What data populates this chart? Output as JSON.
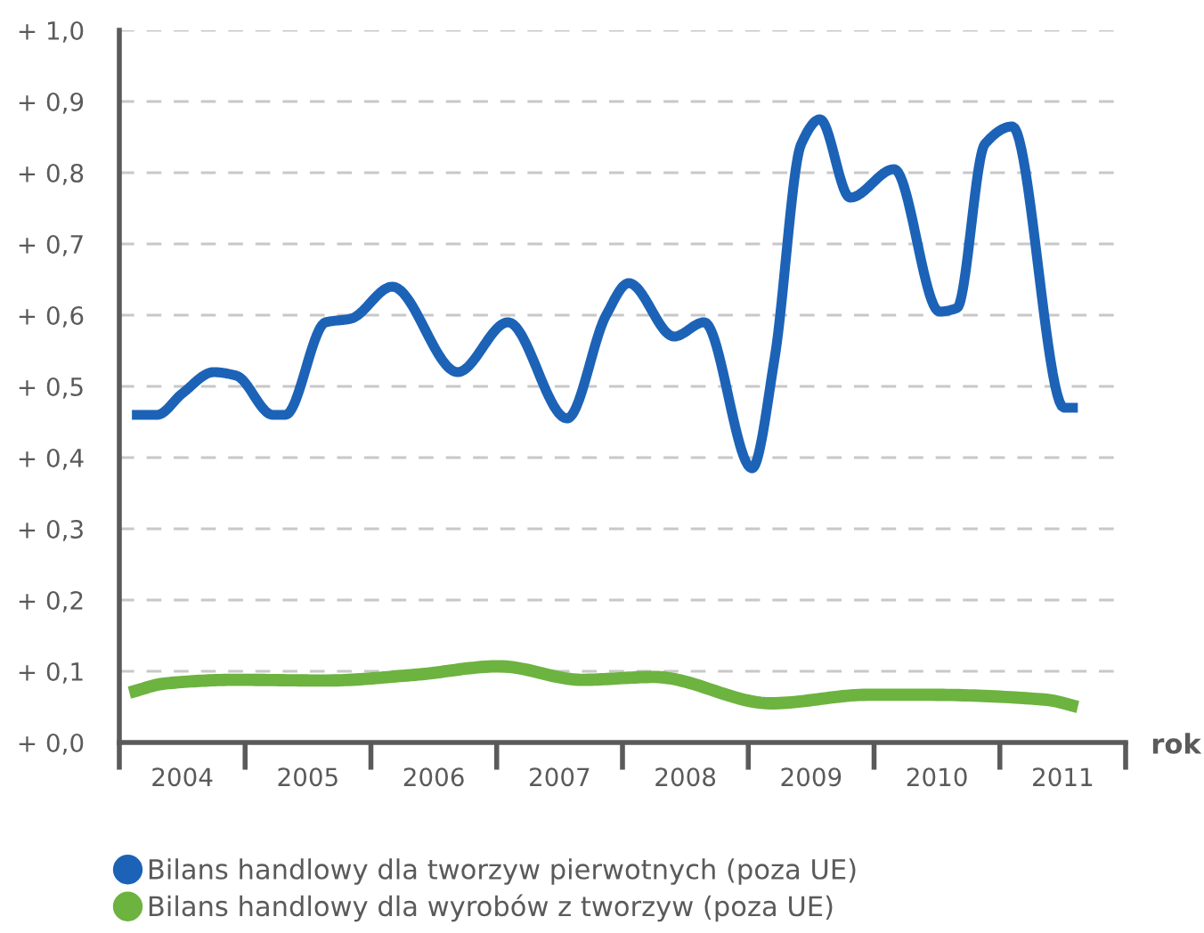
{
  "chart_data": {
    "type": "line",
    "xlabel": "rok",
    "xlim": [
      2003.5,
      2011.5
    ],
    "xticks": [
      {
        "value": 2003.5,
        "label": null
      },
      2004,
      {
        "value": 2004.5,
        "label": null
      },
      2005,
      {
        "value": 2005.5,
        "label": null
      },
      2006,
      {
        "value": 2006.5,
        "label": null
      },
      2007,
      {
        "value": 2007.5,
        "label": null
      },
      2008,
      {
        "value": 2008.5,
        "label": null
      },
      2009,
      {
        "value": 2009.5,
        "label": null
      },
      2010,
      {
        "value": 2010.5,
        "label": null
      },
      2011,
      {
        "value": 2011.5,
        "label": null
      }
    ],
    "ylim": [
      0,
      1
    ],
    "yticks": [
      {
        "value": 0,
        "label": "+ 0,0"
      },
      {
        "value": 0.1,
        "label": "+ 0,1"
      },
      {
        "value": 0.2,
        "label": "+ 0,2"
      },
      {
        "value": 0.3,
        "label": "+ 0,3"
      },
      {
        "value": 0.4,
        "label": "+ 0,4"
      },
      {
        "value": 0.5,
        "label": "+ 0,5"
      },
      {
        "value": 0.6,
        "label": "+ 0,6"
      },
      {
        "value": 0.7,
        "label": "+ 0,7"
      },
      {
        "value": 0.8,
        "label": "+ 0,8"
      },
      {
        "value": 0.9,
        "label": "+ 0,9"
      },
      {
        "value": 1.0,
        "label": "+ 1,0"
      }
    ],
    "grid": "y",
    "legend": "bottom",
    "line_style": "solid",
    "series": [
      {
        "name": "Bilans handlowy dla tworzyw pierwotnych (poza UE)",
        "color": "#1c63b7",
        "x": [
          2003.6,
          2003.8,
          2004.0,
          2004.25,
          2004.43,
          2004.72,
          2004.82,
          2005.14,
          2005.34,
          2005.67,
          2006.19,
          2006.59,
          2007.06,
          2007.37,
          2007.55,
          2007.91,
          2008.15,
          2008.53,
          2008.71,
          2008.92,
          2009.07,
          2009.31,
          2009.66,
          2010.02,
          2010.16,
          2010.38,
          2010.6,
          2011.01,
          2011.12
        ],
        "values": [
          0.46,
          0.46,
          0.49,
          0.52,
          0.515,
          0.46,
          0.46,
          0.59,
          0.595,
          0.64,
          0.52,
          0.59,
          0.455,
          0.6,
          0.645,
          0.57,
          0.59,
          0.385,
          0.54,
          0.84,
          0.875,
          0.765,
          0.805,
          0.605,
          0.61,
          0.84,
          0.865,
          0.47,
          0.47
        ]
      },
      {
        "name": "Bilans handlowy dla wyrobów z tworzyw (poza UE)",
        "color": "#6cb33f",
        "x": [
          2003.58,
          2003.87,
          2004.43,
          2005.14,
          2005.85,
          2006.52,
          2007.18,
          2007.75,
          2008.68,
          2009.45,
          2009.92,
          2010.87,
          2011.12
        ],
        "values": [
          0.07,
          0.083,
          0.088,
          0.087,
          0.095,
          0.107,
          0.088,
          0.092,
          0.055,
          0.067,
          0.067,
          0.06,
          0.05
        ]
      }
    ]
  }
}
